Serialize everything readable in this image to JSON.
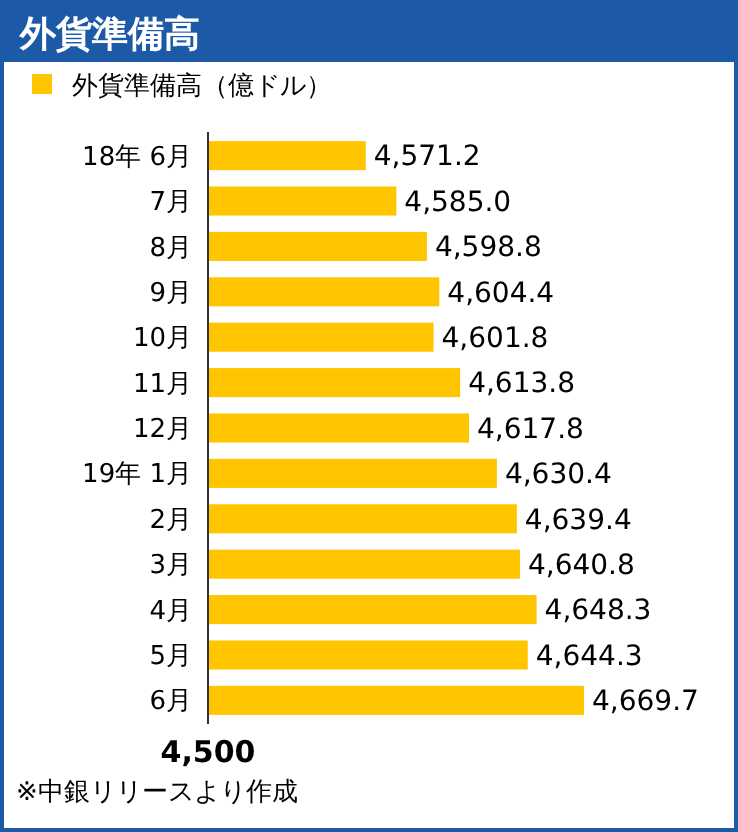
{
  "chart_data": {
    "type": "bar",
    "orientation": "horizontal",
    "title": "外貨準備高",
    "categories": [
      "18年 6月",
      "7月",
      "8月",
      "9月",
      "10月",
      "11月",
      "12月",
      "19年 1月",
      "2月",
      "3月",
      "4月",
      "5月",
      "6月"
    ],
    "series": [
      {
        "name": "外貨準備高（億ドル）",
        "color": "#ffc600",
        "values": [
          4571.2,
          4585.0,
          4598.8,
          4604.4,
          4601.8,
          4613.8,
          4617.8,
          4630.4,
          4639.4,
          4640.8,
          4648.3,
          4644.3,
          4669.7
        ],
        "value_labels": [
          "4,571.2",
          "4,585.0",
          "4,598.8",
          "4,604.4",
          "4,601.8",
          "4,613.8",
          "4,617.8",
          "4,630.4",
          "4,639.4",
          "4,640.8",
          "4,648.3",
          "4,644.3",
          "4,669.7"
        ]
      }
    ],
    "xlim": [
      4500,
      4669.7
    ],
    "grid": false,
    "legend": "top left",
    "annotations": [
      "4,500",
      "※中銀リリースより作成"
    ]
  }
}
